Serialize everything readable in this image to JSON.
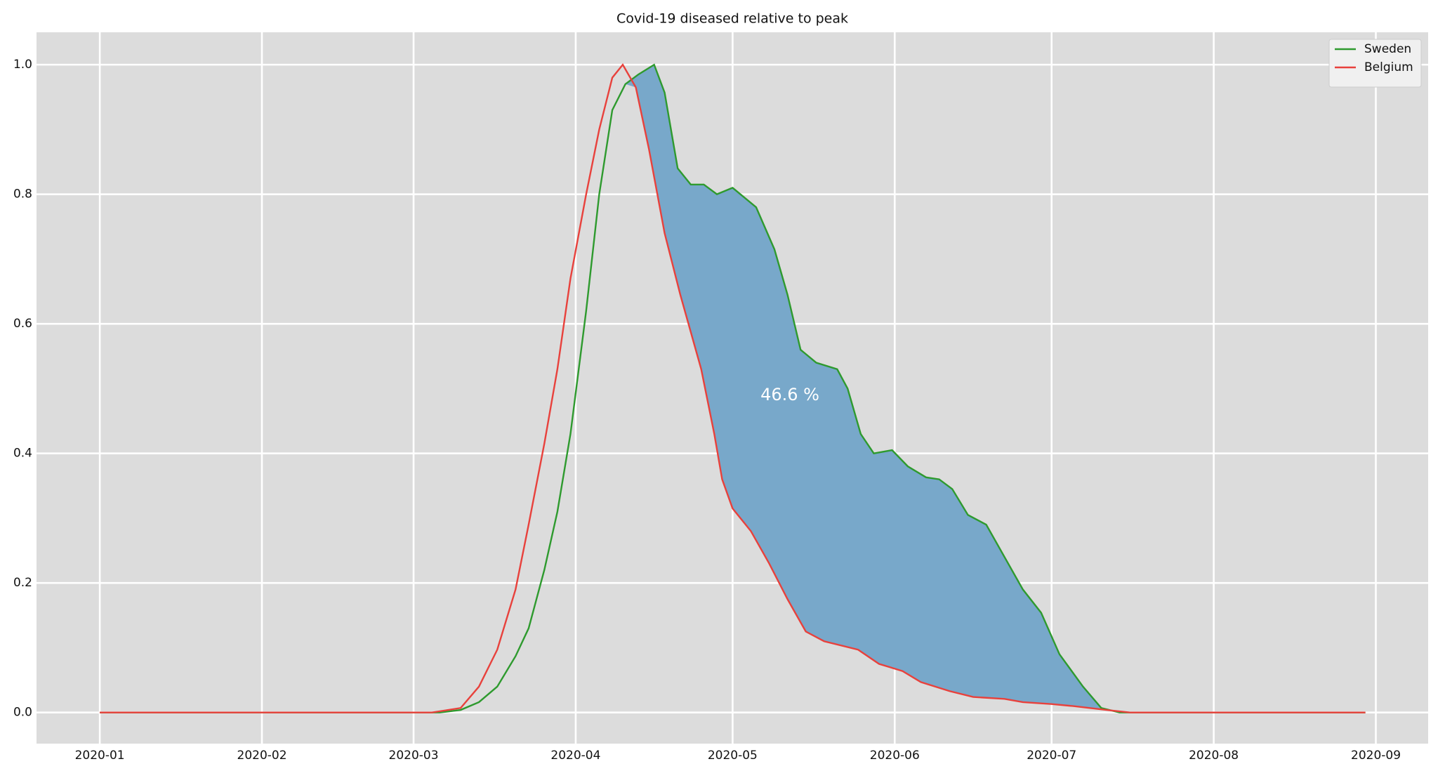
{
  "chart_data": {
    "type": "line",
    "title": "Covid-19 diseased relative to peak",
    "xlim": [
      -12.1,
      254
    ],
    "xticks": [
      {
        "value": 0,
        "label": "2020-01"
      },
      {
        "value": 31,
        "label": "2020-02"
      },
      {
        "value": 60,
        "label": "2020-03"
      },
      {
        "value": 91,
        "label": "2020-04"
      },
      {
        "value": 121,
        "label": "2020-05"
      },
      {
        "value": 152,
        "label": "2020-06"
      },
      {
        "value": 182,
        "label": "2020-07"
      },
      {
        "value": 213,
        "label": "2020-08"
      },
      {
        "value": 244,
        "label": "2020-09"
      }
    ],
    "ylim": [
      -0.048,
      1.05
    ],
    "yticks": [
      {
        "value": 0,
        "label": "0.0"
      },
      {
        "value": 0.2,
        "label": "0.2"
      },
      {
        "value": 0.4,
        "label": "0.4"
      },
      {
        "value": 0.6,
        "label": "0.6"
      },
      {
        "value": 0.8,
        "label": "0.8"
      },
      {
        "value": 1,
        "label": "1.0"
      }
    ],
    "grid": true,
    "legend": "upper right",
    "fill_color": "#78a8ca",
    "annotation": "46.6 %",
    "series": [
      {
        "name": "Sweden",
        "color": "#2e9a2e",
        "x": [
          0,
          65,
          69,
          72.5,
          76,
          79.5,
          82,
          85,
          87.5,
          90,
          93,
          95.5,
          98,
          100.5,
          103,
          106,
          108,
          110.5,
          113,
          115.5,
          118,
          121,
          125.5,
          129,
          131.5,
          134,
          137,
          141,
          143,
          145.5,
          148,
          151.5,
          154.5,
          158,
          160.5,
          163,
          166,
          169.5,
          173,
          176.5,
          180,
          183.5,
          188,
          191.5,
          195,
          242
        ],
        "values": [
          0,
          0,
          0.004,
          0.016,
          0.04,
          0.087,
          0.13,
          0.22,
          0.31,
          0.43,
          0.62,
          0.8,
          0.93,
          0.97,
          0.985,
          1.0,
          0.957,
          0.84,
          0.815,
          0.815,
          0.8,
          0.81,
          0.78,
          0.715,
          0.645,
          0.56,
          0.54,
          0.53,
          0.5,
          0.43,
          0.4,
          0.405,
          0.38,
          0.363,
          0.36,
          0.345,
          0.305,
          0.29,
          0.24,
          0.19,
          0.154,
          0.09,
          0.04,
          0.007,
          0,
          0
        ]
      },
      {
        "name": "Belgium",
        "color": "#e8413c",
        "x": [
          0,
          63.5,
          69,
          72.5,
          76,
          79.5,
          82,
          85,
          87.5,
          90,
          93,
          95.5,
          98,
          100,
          102.5,
          105,
          108,
          111,
          115,
          117.5,
          119,
          121,
          124.5,
          128,
          131.5,
          135,
          138.5,
          145,
          149,
          153.5,
          157,
          162.5,
          167,
          173,
          176.5,
          182,
          186,
          192.5,
          197,
          242
        ],
        "values": [
          0,
          0,
          0.007,
          0.04,
          0.097,
          0.19,
          0.29,
          0.415,
          0.53,
          0.67,
          0.8,
          0.9,
          0.98,
          1.0,
          0.965,
          0.87,
          0.74,
          0.645,
          0.53,
          0.43,
          0.36,
          0.315,
          0.28,
          0.23,
          0.175,
          0.125,
          0.11,
          0.097,
          0.075,
          0.064,
          0.047,
          0.033,
          0.024,
          0.021,
          0.016,
          0.013,
          0.01,
          0.004,
          0,
          0
        ]
      }
    ]
  }
}
